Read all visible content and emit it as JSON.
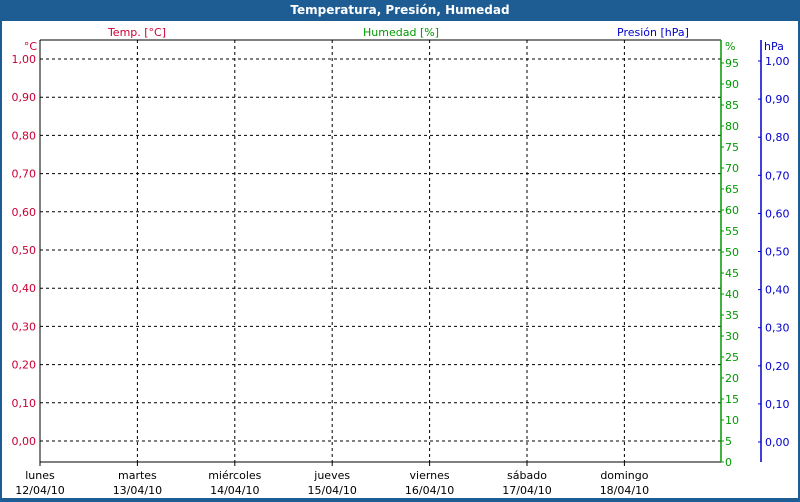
{
  "window": {
    "title": "Temperatura, Presión, Humedad"
  },
  "chart_data": {
    "type": "line",
    "title": "Temperatura, Presión, Humedad",
    "categories": [
      {
        "day": "lunes",
        "date": "12/04/10"
      },
      {
        "day": "martes",
        "date": "13/04/10"
      },
      {
        "day": "miércoles",
        "date": "14/04/10"
      },
      {
        "day": "jueves",
        "date": "15/04/10"
      },
      {
        "day": "viernes",
        "date": "16/04/10"
      },
      {
        "day": "sábado",
        "date": "17/04/10"
      },
      {
        "day": "domingo",
        "date": "18/04/10"
      }
    ],
    "series": [],
    "grid": true,
    "axes": {
      "temp": {
        "title": "Temp. [°C]",
        "unit": "°C",
        "color": "#cc0033",
        "ylim": [
          0,
          1
        ],
        "ticks": [
          "0,00",
          "0,10",
          "0,20",
          "0,30",
          "0,40",
          "0,50",
          "0,60",
          "0,70",
          "0,80",
          "0,90",
          "1,00"
        ]
      },
      "humidity": {
        "title": "Humedad [%]",
        "unit": "%",
        "color": "#009900",
        "ylim": [
          0,
          95
        ],
        "ticks": [
          "0",
          "5",
          "10",
          "15",
          "20",
          "25",
          "30",
          "35",
          "40",
          "45",
          "50",
          "55",
          "60",
          "65",
          "70",
          "75",
          "80",
          "85",
          "90",
          "95"
        ]
      },
      "pressure": {
        "title": "Presión [hPa]",
        "unit": "hPa",
        "color": "#0000cc",
        "ylim": [
          0,
          1
        ],
        "ticks": [
          "0,00",
          "0,10",
          "0,20",
          "0,30",
          "0,40",
          "0,50",
          "0,60",
          "0,70",
          "0,80",
          "0,90",
          "1,00"
        ]
      }
    }
  }
}
